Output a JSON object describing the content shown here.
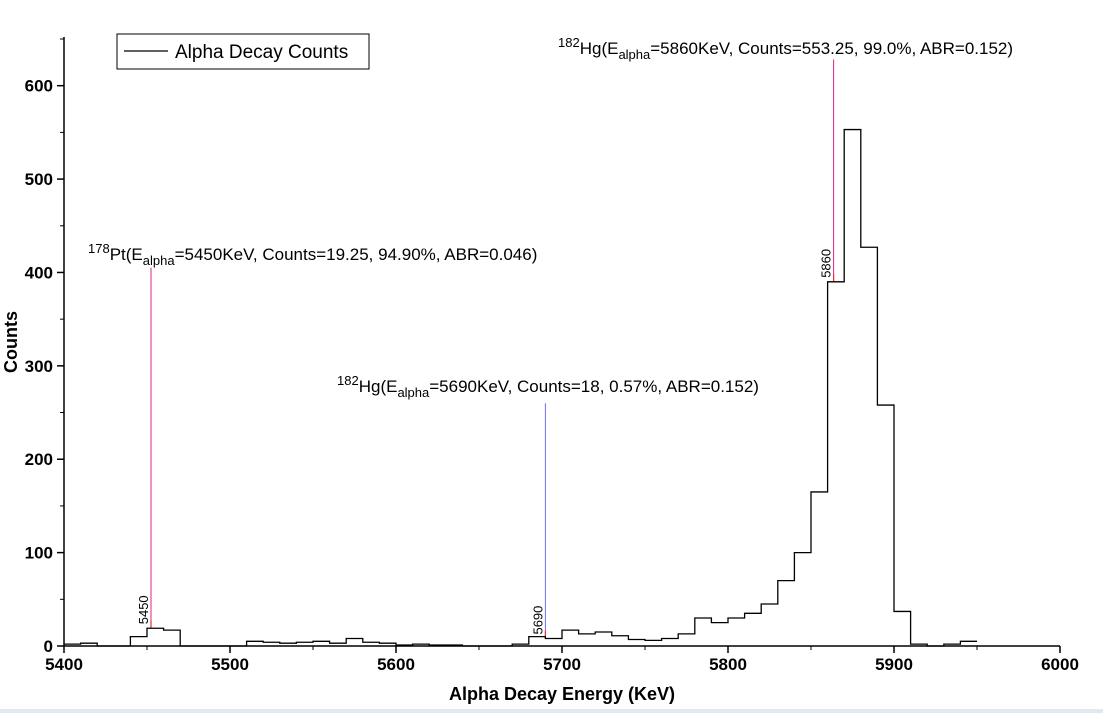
{
  "chart_data": {
    "type": "line",
    "step": true,
    "xlabel": "Alpha Decay Energy (KeV)",
    "ylabel": "Counts",
    "xlim": [
      5400,
      6000
    ],
    "ylim": [
      0,
      650
    ],
    "xticks": [
      5400,
      5500,
      5600,
      5700,
      5800,
      5900,
      6000
    ],
    "yticks": [
      0,
      100,
      200,
      300,
      400,
      500,
      600
    ],
    "legend": {
      "position": "top-left",
      "label": "Alpha Decay Counts"
    },
    "colors": {
      "line": "#000000",
      "marker_pink": "#e0208a",
      "marker_blue": "#6f6fe8",
      "marker_red": "#e83030"
    },
    "series": [
      {
        "name": "Alpha Decay Counts",
        "bin_width": 10,
        "bin_starts": [
          5400,
          5410,
          5420,
          5430,
          5440,
          5450,
          5460,
          5470,
          5480,
          5490,
          5500,
          5510,
          5520,
          5530,
          5540,
          5550,
          5560,
          5570,
          5580,
          5590,
          5600,
          5610,
          5620,
          5630,
          5640,
          5650,
          5660,
          5670,
          5680,
          5690,
          5700,
          5710,
          5720,
          5730,
          5740,
          5750,
          5760,
          5770,
          5780,
          5790,
          5800,
          5810,
          5820,
          5830,
          5840,
          5850,
          5860,
          5870,
          5880,
          5890,
          5900,
          5910,
          5920,
          5930,
          5940
        ],
        "values": [
          2,
          3,
          0,
          0,
          10,
          19,
          17,
          0,
          0,
          0,
          0,
          5,
          4,
          3,
          4,
          5,
          3,
          8,
          4,
          3,
          1,
          2,
          1,
          1,
          0,
          0,
          0,
          2,
          10,
          8,
          17,
          13,
          15,
          11,
          7,
          6,
          8,
          13,
          30,
          25,
          30,
          35,
          45,
          70,
          100,
          165,
          390,
          553,
          427,
          258,
          37,
          2,
          0,
          2,
          5
        ]
      }
    ],
    "peak_markers": [
      {
        "energy": 5450,
        "label": "5450",
        "top_value": 405,
        "color": "pink"
      },
      {
        "energy": 5690,
        "label": "5690",
        "top_value": 260,
        "color": "blue"
      },
      {
        "energy": 5860,
        "label": "5860",
        "top_value": 628,
        "color": "pink"
      }
    ],
    "annotations": [
      {
        "mass": "178",
        "element": "Pt",
        "e_sub": "alpha",
        "rest": "=5450KeV, Counts=19.25, 94.90%, ABR=0.046)",
        "open": "(E"
      },
      {
        "mass": "182",
        "element": "Hg",
        "e_sub": "alpha",
        "rest": "=5690KeV, Counts=18, 0.57%, ABR=0.152)",
        "open": "(E"
      },
      {
        "mass": "182",
        "element": "Hg",
        "e_sub": "alpha",
        "rest": "=5860KeV, Counts=553.25, 99.0%, ABR=0.152)",
        "open": "(E"
      }
    ]
  }
}
